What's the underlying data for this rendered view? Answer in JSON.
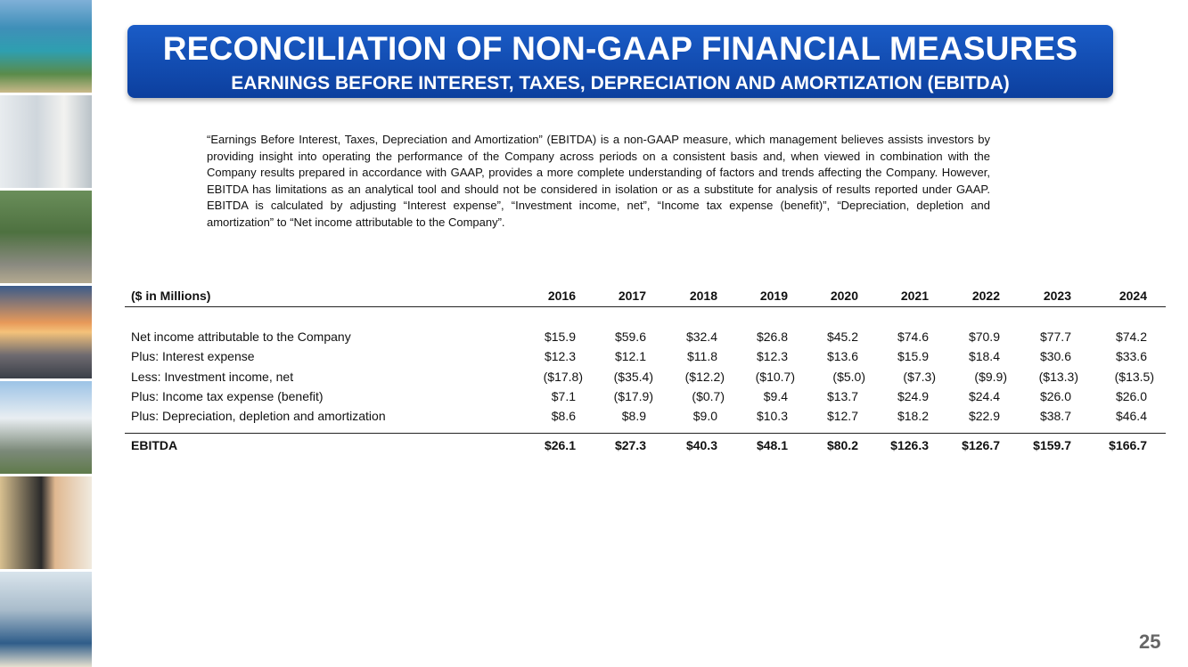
{
  "header": {
    "title": "RECONCILIATION OF NON-GAAP FINANCIAL MEASURES",
    "subtitle": "EARNINGS BEFORE INTEREST, TAXES, DEPRECIATION AND AMORTIZATION (EBITDA)"
  },
  "description": "“Earnings Before Interest, Taxes, Depreciation and Amortization” (EBITDA) is a non-GAAP measure, which management believes assists investors by providing insight into operating the performance of the Company across periods on a consistent basis and, when viewed in combination with the Company results prepared in accordance with GAAP, provides a more complete understanding of factors and trends affecting the Company. However, EBITDA has limitations as an analytical tool and should not be considered in isolation or as a substitute for analysis of results reported under GAAP. EBITDA is calculated by adjusting “Interest expense”, “Investment income, net”, “Income tax expense (benefit)”, “Depreciation, depletion and amortization” to “Net income attributable to the Company”.",
  "table": {
    "header": [
      "($ in Millions)",
      "2016",
      "2017",
      "2018",
      "2019",
      "2020",
      "2021",
      "2022",
      "2023",
      "2024"
    ],
    "rows": [
      [
        "Net income attributable to the Company",
        "$15.9",
        "$59.6",
        "$32.4",
        "$26.8",
        "$45.2",
        "$74.6",
        "$70.9",
        "$77.7",
        "$74.2"
      ],
      [
        "Plus: Interest expense",
        "$12.3",
        "$12.1",
        "$11.8",
        "$12.3",
        "$13.6",
        "$15.9",
        "$18.4",
        "$30.6",
        "$33.6"
      ],
      [
        "Less: Investment income, net",
        "($17.8)",
        "($35.4)",
        "($12.2)",
        "($10.7)",
        "($5.0)",
        "($7.3)",
        "($9.9)",
        "($13.3)",
        "($13.5)"
      ],
      [
        "Plus: Income tax expense (benefit)",
        "$7.1",
        "($17.9)",
        "($0.7)",
        "$9.4",
        "$13.7",
        "$24.9",
        "$24.4",
        "$26.0",
        "$26.0"
      ],
      [
        "Plus: Depreciation, depletion and amortization",
        "$8.6",
        "$8.9",
        "$9.0",
        "$10.3",
        "$12.7",
        "$18.2",
        "$22.9",
        "$38.7",
        "$46.4"
      ]
    ],
    "total": [
      "EBITDA",
      "$26.1",
      "$27.3",
      "$40.3",
      "$48.1",
      "$80.2",
      "$126.3",
      "$126.7",
      "$159.7",
      "$166.7"
    ]
  },
  "page_number": "25"
}
